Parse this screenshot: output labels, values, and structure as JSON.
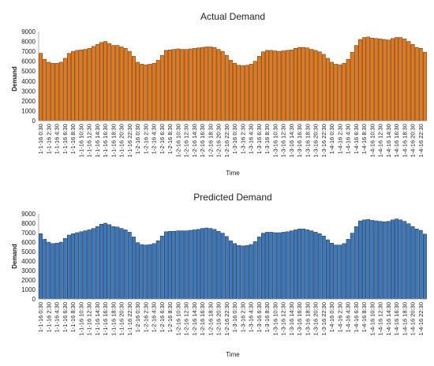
{
  "chart_data": [
    {
      "type": "bar",
      "title": "Actual Demand",
      "xlabel": "Time",
      "ylabel": "Demand",
      "ylim": [
        0,
        9000
      ],
      "yticks": [
        0,
        1000,
        2000,
        3000,
        4000,
        5000,
        6000,
        7000,
        8000,
        9000
      ],
      "grid": false,
      "bar_color": "#E07A1F",
      "bar_edge_color": "#5A2A05",
      "tick_labels": [
        "1-1-16 0:30",
        "1-1-16 2:30",
        "1-1-16 4:30",
        "1-1-16 6:30",
        "1-1-16 8:30",
        "1-1-16 10:30",
        "1-1-16 12:30",
        "1-1-16 14:30",
        "1-1-16 16:30",
        "1-1-16 18:30",
        "1-1-16 20:30",
        "1-1-16 22:30",
        "1-2-16 0:30",
        "1-2-16 2:30",
        "1-2-16 4:30",
        "1-2-16 6:30",
        "1-2-16 8:30",
        "1-2-16 10:30",
        "1-2-16 12:30",
        "1-2-16 14:30",
        "1-2-16 16:30",
        "1-2-16 18:30",
        "1-2-16 20:30",
        "1-2-16 22:30",
        "1-3-16 0:30",
        "1-3-16 2:30",
        "1-3-16 4:30",
        "1-3-16 6:30",
        "1-3-16 8:30",
        "1-3-16 10:30",
        "1-3-16 12:30",
        "1-3-16 14:30",
        "1-3-16 16:30",
        "1-3-16 18:30",
        "1-3-16 20:30",
        "1-3-16 22:30",
        "1-4-16 0:30",
        "1-4-16 2:30",
        "1-4-16 4:30",
        "1-4-16 6:30",
        "1-4-16 8:30",
        "1-4-16 10:30",
        "1-4-16 12:30",
        "1-4-16 14:30",
        "1-4-16 16:30",
        "1-4-16 18:30",
        "1-4-16 20:30",
        "1-4-16 22:30"
      ],
      "categories": [
        "1-1-16 0:30",
        "1-1-16 1:30",
        "1-1-16 2:30",
        "1-1-16 3:30",
        "1-1-16 4:30",
        "1-1-16 5:30",
        "1-1-16 6:30",
        "1-1-16 7:30",
        "1-1-16 8:30",
        "1-1-16 9:30",
        "1-1-16 10:30",
        "1-1-16 11:30",
        "1-1-16 12:30",
        "1-1-16 13:30",
        "1-1-16 14:30",
        "1-1-16 15:30",
        "1-1-16 16:30",
        "1-1-16 17:30",
        "1-1-16 18:30",
        "1-1-16 19:30",
        "1-1-16 20:30",
        "1-1-16 21:30",
        "1-1-16 22:30",
        "1-1-16 23:30",
        "1-2-16 0:30",
        "1-2-16 1:30",
        "1-2-16 2:30",
        "1-2-16 3:30",
        "1-2-16 4:30",
        "1-2-16 5:30",
        "1-2-16 6:30",
        "1-2-16 7:30",
        "1-2-16 8:30",
        "1-2-16 9:30",
        "1-2-16 10:30",
        "1-2-16 11:30",
        "1-2-16 12:30",
        "1-2-16 13:30",
        "1-2-16 14:30",
        "1-2-16 15:30",
        "1-2-16 16:30",
        "1-2-16 17:30",
        "1-2-16 18:30",
        "1-2-16 19:30",
        "1-2-16 20:30",
        "1-2-16 21:30",
        "1-2-16 22:30",
        "1-2-16 23:30",
        "1-3-16 0:30",
        "1-3-16 1:30",
        "1-3-16 2:30",
        "1-3-16 3:30",
        "1-3-16 4:30",
        "1-3-16 5:30",
        "1-3-16 6:30",
        "1-3-16 7:30",
        "1-3-16 8:30",
        "1-3-16 9:30",
        "1-3-16 10:30",
        "1-3-16 11:30",
        "1-3-16 12:30",
        "1-3-16 13:30",
        "1-3-16 14:30",
        "1-3-16 15:30",
        "1-3-16 16:30",
        "1-3-16 17:30",
        "1-3-16 18:30",
        "1-3-16 19:30",
        "1-3-16 20:30",
        "1-3-16 21:30",
        "1-3-16 22:30",
        "1-3-16 23:30",
        "1-4-16 0:30",
        "1-4-16 1:30",
        "1-4-16 2:30",
        "1-4-16 3:30",
        "1-4-16 4:30",
        "1-4-16 5:30",
        "1-4-16 6:30",
        "1-4-16 7:30",
        "1-4-16 8:30",
        "1-4-16 9:30",
        "1-4-16 10:30",
        "1-4-16 11:30",
        "1-4-16 12:30",
        "1-4-16 13:30",
        "1-4-16 14:30",
        "1-4-16 15:30",
        "1-4-16 16:30",
        "1-4-16 17:30",
        "1-4-16 18:30",
        "1-4-16 19:30",
        "1-4-16 20:30",
        "1-4-16 21:30",
        "1-4-16 22:30",
        "1-4-16 23:30"
      ],
      "values": [
        6800,
        6200,
        5900,
        5800,
        5800,
        5900,
        6300,
        6800,
        7000,
        7100,
        7150,
        7200,
        7300,
        7500,
        7700,
        7900,
        8000,
        7800,
        7600,
        7600,
        7450,
        7300,
        7000,
        6500,
        5900,
        5700,
        5650,
        5700,
        5800,
        6100,
        6600,
        7100,
        7150,
        7200,
        7250,
        7200,
        7200,
        7250,
        7300,
        7350,
        7400,
        7450,
        7450,
        7400,
        7200,
        7000,
        6600,
        6100,
        5800,
        5600,
        5550,
        5600,
        5700,
        6000,
        6500,
        6950,
        7100,
        7100,
        7050,
        7000,
        7050,
        7100,
        7150,
        7300,
        7400,
        7400,
        7350,
        7200,
        7100,
        6950,
        6700,
        6300,
        5900,
        5700,
        5650,
        5800,
        6200,
        6900,
        7600,
        8200,
        8400,
        8450,
        8350,
        8300,
        8250,
        8200,
        8150,
        8300,
        8400,
        8400,
        8250,
        8000,
        7700,
        7400,
        7300,
        6900
      ]
    },
    {
      "type": "bar",
      "title": "Predicted Demand",
      "xlabel": "Time",
      "ylabel": "Demand",
      "ylim": [
        0,
        9000
      ],
      "yticks": [
        0,
        1000,
        2000,
        3000,
        4000,
        5000,
        6000,
        7000,
        8000,
        9000
      ],
      "grid": false,
      "bar_color": "#3F78B8",
      "bar_edge_color": "#0E2A4E",
      "tick_labels": [
        "1-1-16 0:30",
        "1-1-16 2:30",
        "1-1-16 4:30",
        "1-1-16 6:30",
        "1-1-16 8:30",
        "1-1-16 10:30",
        "1-1-16 12:30",
        "1-1-16 14:30",
        "1-1-16 16:30",
        "1-1-16 18:30",
        "1-1-16 20:30",
        "1-1-16 22:30",
        "1-2-16 0:30",
        "1-2-16 2:30",
        "1-2-16 4:30",
        "1-2-16 6:30",
        "1-2-16 8:30",
        "1-2-16 10:30",
        "1-2-16 12:30",
        "1-2-16 14:30",
        "1-2-16 16:30",
        "1-2-16 18:30",
        "1-2-16 20:30",
        "1-2-16 22:30",
        "1-3-16 0:30",
        "1-3-16 2:30",
        "1-3-16 4:30",
        "1-3-16 6:30",
        "1-3-16 8:30",
        "1-3-16 10:30",
        "1-3-16 12:30",
        "1-3-16 14:30",
        "1-3-16 16:30",
        "1-3-16 18:30",
        "1-3-16 20:30",
        "1-3-16 22:30",
        "1-4-16 0:30",
        "1-4-16 2:30",
        "1-4-16 4:30",
        "1-4-16 6:30",
        "1-4-16 8:30",
        "1-4-16 10:30",
        "1-4-16 12:30",
        "1-4-16 14:30",
        "1-4-16 16:30",
        "1-4-16 18:30",
        "1-4-16 20:30",
        "1-4-16 22:30"
      ],
      "categories": [
        "1-1-16 0:30",
        "1-1-16 1:30",
        "1-1-16 2:30",
        "1-1-16 3:30",
        "1-1-16 4:30",
        "1-1-16 5:30",
        "1-1-16 6:30",
        "1-1-16 7:30",
        "1-1-16 8:30",
        "1-1-16 9:30",
        "1-1-16 10:30",
        "1-1-16 11:30",
        "1-1-16 12:30",
        "1-1-16 13:30",
        "1-1-16 14:30",
        "1-1-16 15:30",
        "1-1-16 16:30",
        "1-1-16 17:30",
        "1-1-16 18:30",
        "1-1-16 19:30",
        "1-1-16 20:30",
        "1-1-16 21:30",
        "1-1-16 22:30",
        "1-1-16 23:30",
        "1-2-16 0:30",
        "1-2-16 1:30",
        "1-2-16 2:30",
        "1-2-16 3:30",
        "1-2-16 4:30",
        "1-2-16 5:30",
        "1-2-16 6:30",
        "1-2-16 7:30",
        "1-2-16 8:30",
        "1-2-16 9:30",
        "1-2-16 10:30",
        "1-2-16 11:30",
        "1-2-16 12:30",
        "1-2-16 13:30",
        "1-2-16 14:30",
        "1-2-16 15:30",
        "1-2-16 16:30",
        "1-2-16 17:30",
        "1-2-16 18:30",
        "1-2-16 19:30",
        "1-2-16 20:30",
        "1-2-16 21:30",
        "1-2-16 22:30",
        "1-2-16 23:30",
        "1-3-16 0:30",
        "1-3-16 1:30",
        "1-3-16 2:30",
        "1-3-16 3:30",
        "1-3-16 4:30",
        "1-3-16 5:30",
        "1-3-16 6:30",
        "1-3-16 7:30",
        "1-3-16 8:30",
        "1-3-16 9:30",
        "1-3-16 10:30",
        "1-3-16 11:30",
        "1-3-16 12:30",
        "1-3-16 13:30",
        "1-3-16 14:30",
        "1-3-16 15:30",
        "1-3-16 16:30",
        "1-3-16 17:30",
        "1-3-16 18:30",
        "1-3-16 19:30",
        "1-3-16 20:30",
        "1-3-16 21:30",
        "1-3-16 22:30",
        "1-3-16 23:30",
        "1-4-16 0:30",
        "1-4-16 1:30",
        "1-4-16 2:30",
        "1-4-16 3:30",
        "1-4-16 4:30",
        "1-4-16 5:30",
        "1-4-16 6:30",
        "1-4-16 7:30",
        "1-4-16 8:30",
        "1-4-16 9:30",
        "1-4-16 10:30",
        "1-4-16 11:30",
        "1-4-16 12:30",
        "1-4-16 13:30",
        "1-4-16 14:30",
        "1-4-16 15:30",
        "1-4-16 16:30",
        "1-4-16 17:30",
        "1-4-16 18:30",
        "1-4-16 19:30",
        "1-4-16 20:30",
        "1-4-16 21:30",
        "1-4-16 22:30",
        "1-4-16 23:30"
      ],
      "values": [
        6900,
        6300,
        6000,
        5850,
        5900,
        6000,
        6400,
        6750,
        6900,
        7000,
        7100,
        7200,
        7300,
        7450,
        7650,
        7900,
        8000,
        7850,
        7650,
        7600,
        7450,
        7300,
        7050,
        6550,
        5950,
        5750,
        5700,
        5750,
        5850,
        6150,
        6650,
        7100,
        7150,
        7150,
        7200,
        7200,
        7200,
        7250,
        7300,
        7350,
        7450,
        7500,
        7450,
        7350,
        7150,
        6950,
        6600,
        6150,
        5850,
        5650,
        5600,
        5650,
        5750,
        6050,
        6550,
        6950,
        7050,
        7050,
        7000,
        7000,
        7050,
        7100,
        7200,
        7300,
        7400,
        7400,
        7300,
        7200,
        7050,
        6900,
        6650,
        6250,
        5900,
        5700,
        5700,
        5850,
        6300,
        6950,
        7650,
        8250,
        8350,
        8400,
        8300,
        8250,
        8200,
        8150,
        8200,
        8350,
        8450,
        8350,
        8200,
        7950,
        7650,
        7400,
        7250,
        6850
      ]
    }
  ]
}
